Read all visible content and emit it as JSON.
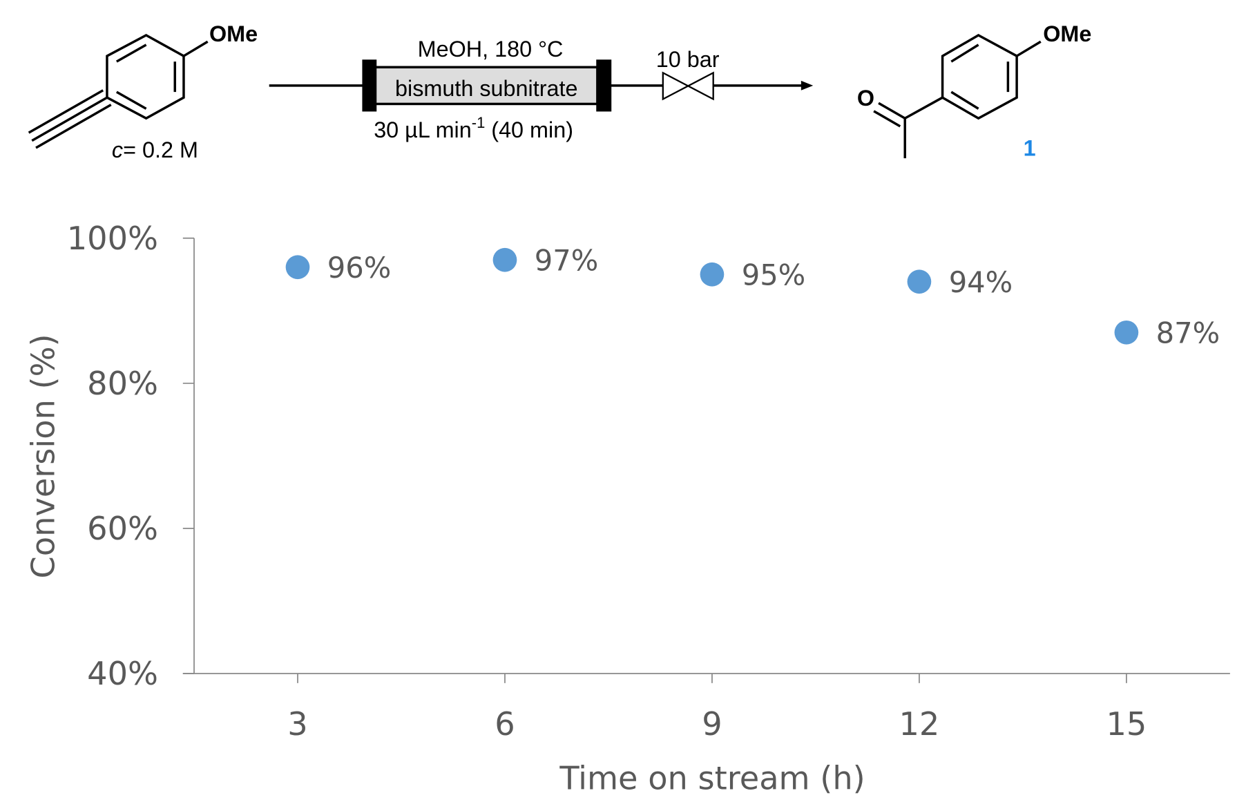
{
  "scheme": {
    "reactant_group": "OMe",
    "concentration_var": "c",
    "concentration": "= 0.2 M",
    "conditions_top": "MeOH, 180 °C",
    "catalyst": "bismuth subnitrate",
    "flow_rate": "30 µL min",
    "flow_rate_exp": "-1",
    "flow_time": " (40 min)",
    "pressure": "10 bar",
    "product_oxygen": "O",
    "product_group": "OMe",
    "product_label": "1"
  },
  "chart_data": {
    "type": "scatter",
    "x_label": "Time on stream (h)",
    "y_label": "Conversion (%)",
    "x": [
      3,
      6,
      9,
      12,
      15
    ],
    "values": [
      96,
      97,
      95,
      94,
      87
    ],
    "value_labels": [
      "96%",
      "97%",
      "95%",
      "94%",
      "87%"
    ],
    "color": "#5b9bd5",
    "xlim": [
      1.5,
      16.5
    ],
    "xticks": [
      3,
      6,
      9,
      12,
      15
    ],
    "ylim": [
      40,
      100
    ],
    "yticks": [
      {
        "value": 40,
        "label": "40%"
      },
      {
        "value": 60,
        "label": "60%"
      },
      {
        "value": 80,
        "label": "80%"
      },
      {
        "value": 100,
        "label": "100%"
      }
    ]
  }
}
